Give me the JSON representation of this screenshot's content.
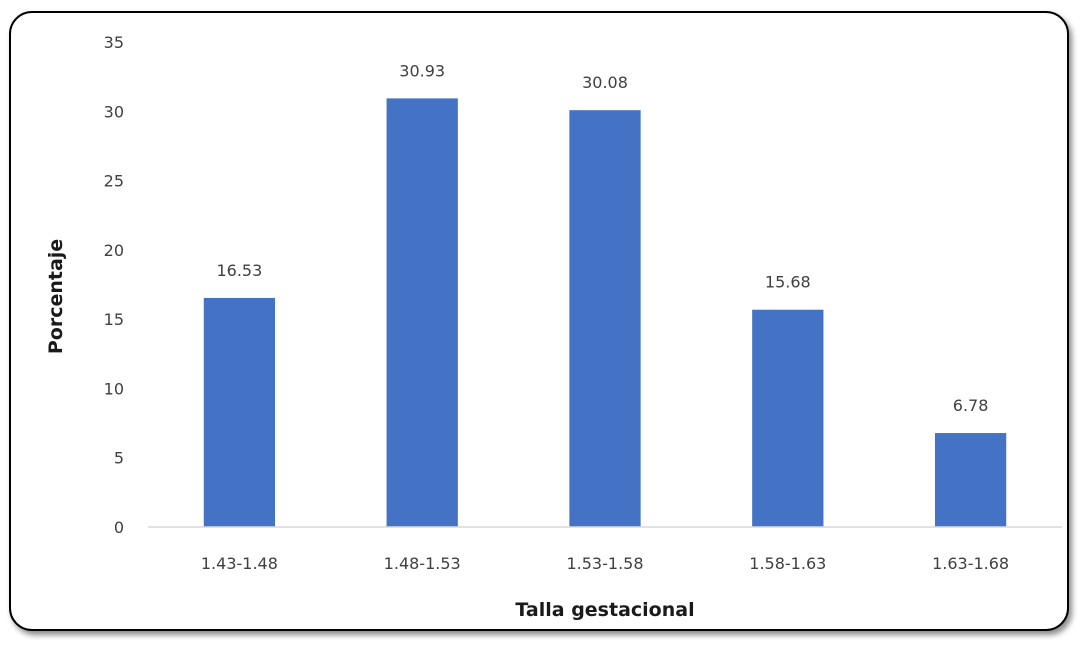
{
  "chart_data": {
    "type": "bar",
    "title": "",
    "xlabel": "Talla gestacional",
    "ylabel": "Porcentaje",
    "categories": [
      "1.43-1.48",
      "1.48-1.53",
      "1.53-1.58",
      "1.58-1.63",
      "1.63-1.68"
    ],
    "values": [
      16.53,
      30.93,
      30.08,
      15.68,
      6.78
    ],
    "value_labels": [
      "16.53",
      "30.93",
      "30.08",
      "15.68",
      "6.78"
    ],
    "ylim": [
      0,
      35
    ],
    "yticks": [
      0,
      5,
      10,
      15,
      20,
      25,
      30,
      35
    ],
    "grid": false,
    "legend": "none",
    "bar_color": "#4472C4",
    "frame": "rounded border with drop shadow"
  }
}
